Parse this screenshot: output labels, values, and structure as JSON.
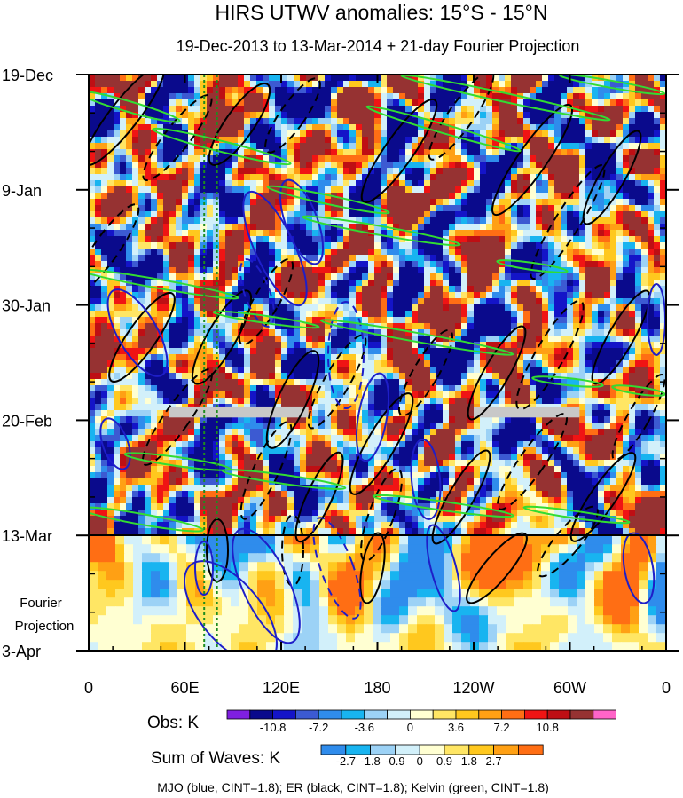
{
  "chart_data": {
    "type": "heatmap",
    "title": "HIRS UTWV anomalies: 15°S - 15°N",
    "subtitle": "19-Dec-2013 to 13-Mar-2014 + 21-day Fourier Projection",
    "x_ticks": [
      "0",
      "60E",
      "120E",
      "180",
      "120W",
      "60W",
      "0"
    ],
    "x_range": [
      0,
      360
    ],
    "y_ticks": [
      "19-Dec",
      "9-Jan",
      "30-Jan",
      "20-Feb",
      "13-Mar",
      "3-Apr"
    ],
    "y_range_days": [
      0,
      105
    ],
    "observation_end_day": 84,
    "projection_label": [
      "Fourier",
      "Projection"
    ],
    "obs_colorbar": {
      "label": "Obs: K",
      "tick_labels": [
        "-10.8",
        "-7.2",
        "-3.6",
        "0",
        "3.6",
        "7.2",
        "10.8"
      ],
      "colors": [
        "#7f1fe0",
        "#0a0a8c",
        "#1414c8",
        "#3c5ad2",
        "#2f8cec",
        "#18b4f0",
        "#9cd2f6",
        "#d2f0fa",
        "#ffffd2",
        "#ffe664",
        "#ffc81e",
        "#ffa014",
        "#ff6e14",
        "#f01414",
        "#be0f14",
        "#963232",
        "#ff64c8"
      ]
    },
    "waves_colorbar": {
      "label": "Sum of Waves: K",
      "tick_labels": [
        "-2.7",
        "-1.8",
        "-0.9",
        "0",
        "0.9",
        "1.8",
        "2.7"
      ],
      "colors": [
        "#2f8cec",
        "#18b4f0",
        "#9cd2f6",
        "#d2f0fa",
        "#ffffd2",
        "#ffe664",
        "#ffc81e",
        "#ffa014",
        "#ff6e14"
      ]
    },
    "contour_legend": "MJO (blue, CINT=1.8); ER (black, CINT=1.8); Kelvin (green, CINT=1.8)",
    "contour_colors": {
      "mjo": "#1e1ec8",
      "er": "#000000",
      "kelvin": "#32dc32",
      "lines": "#1e8c1e",
      "missing": "#c8c8c8"
    },
    "reference_longitudes": [
      72,
      80
    ]
  }
}
